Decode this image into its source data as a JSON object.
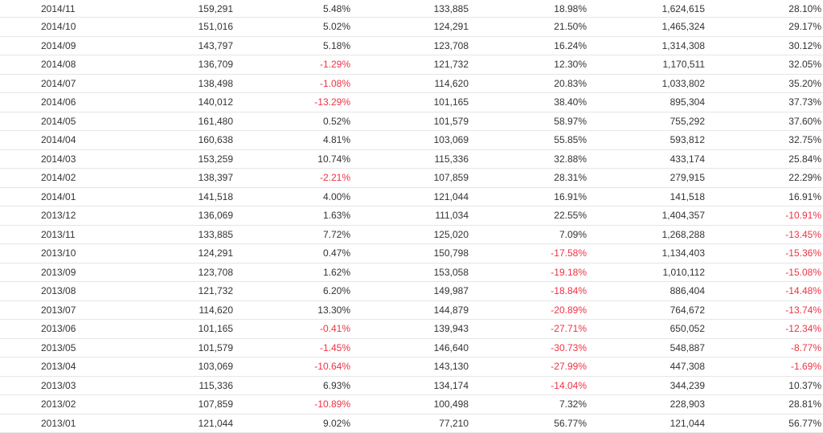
{
  "colors": {
    "text": "#333333",
    "negative": "#ee3344",
    "row_border": "#e6e6e6"
  },
  "rows": [
    [
      "2014/11",
      "159,291",
      "5.48%",
      "133,885",
      "18.98%",
      "1,624,615",
      "28.10%"
    ],
    [
      "2014/10",
      "151,016",
      "5.02%",
      "124,291",
      "21.50%",
      "1,465,324",
      "29.17%"
    ],
    [
      "2014/09",
      "143,797",
      "5.18%",
      "123,708",
      "16.24%",
      "1,314,308",
      "30.12%"
    ],
    [
      "2014/08",
      "136,709",
      "-1.29%",
      "121,732",
      "12.30%",
      "1,170,511",
      "32.05%"
    ],
    [
      "2014/07",
      "138,498",
      "-1.08%",
      "114,620",
      "20.83%",
      "1,033,802",
      "35.20%"
    ],
    [
      "2014/06",
      "140,012",
      "-13.29%",
      "101,165",
      "38.40%",
      "895,304",
      "37.73%"
    ],
    [
      "2014/05",
      "161,480",
      "0.52%",
      "101,579",
      "58.97%",
      "755,292",
      "37.60%"
    ],
    [
      "2014/04",
      "160,638",
      "4.81%",
      "103,069",
      "55.85%",
      "593,812",
      "32.75%"
    ],
    [
      "2014/03",
      "153,259",
      "10.74%",
      "115,336",
      "32.88%",
      "433,174",
      "25.84%"
    ],
    [
      "2014/02",
      "138,397",
      "-2.21%",
      "107,859",
      "28.31%",
      "279,915",
      "22.29%"
    ],
    [
      "2014/01",
      "141,518",
      "4.00%",
      "121,044",
      "16.91%",
      "141,518",
      "16.91%"
    ],
    [
      "2013/12",
      "136,069",
      "1.63%",
      "111,034",
      "22.55%",
      "1,404,357",
      "-10.91%"
    ],
    [
      "2013/11",
      "133,885",
      "7.72%",
      "125,020",
      "7.09%",
      "1,268,288",
      "-13.45%"
    ],
    [
      "2013/10",
      "124,291",
      "0.47%",
      "150,798",
      "-17.58%",
      "1,134,403",
      "-15.36%"
    ],
    [
      "2013/09",
      "123,708",
      "1.62%",
      "153,058",
      "-19.18%",
      "1,010,112",
      "-15.08%"
    ],
    [
      "2013/08",
      "121,732",
      "6.20%",
      "149,987",
      "-18.84%",
      "886,404",
      "-14.48%"
    ],
    [
      "2013/07",
      "114,620",
      "13.30%",
      "144,879",
      "-20.89%",
      "764,672",
      "-13.74%"
    ],
    [
      "2013/06",
      "101,165",
      "-0.41%",
      "139,943",
      "-27.71%",
      "650,052",
      "-12.34%"
    ],
    [
      "2013/05",
      "101,579",
      "-1.45%",
      "146,640",
      "-30.73%",
      "548,887",
      "-8.77%"
    ],
    [
      "2013/04",
      "103,069",
      "-10.64%",
      "143,130",
      "-27.99%",
      "447,308",
      "-1.69%"
    ],
    [
      "2013/03",
      "115,336",
      "6.93%",
      "134,174",
      "-14.04%",
      "344,239",
      "10.37%"
    ],
    [
      "2013/02",
      "107,859",
      "-10.89%",
      "100,498",
      "7.32%",
      "228,903",
      "28.81%"
    ],
    [
      "2013/01",
      "121,044",
      "9.02%",
      "77,210",
      "56.77%",
      "121,044",
      "56.77%"
    ]
  ]
}
